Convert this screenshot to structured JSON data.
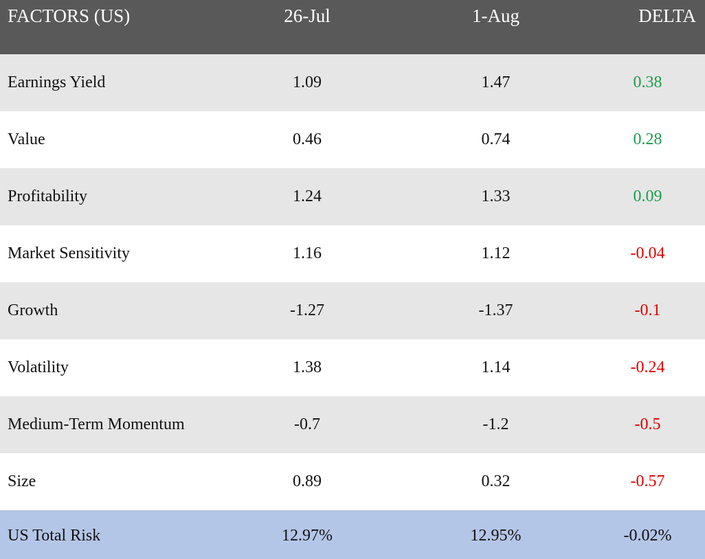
{
  "colors": {
    "header_bg": "#595959",
    "header_text": "#ffffff",
    "row_alt_bg": "#e6e6e6",
    "row_bg": "#ffffff",
    "total_bg": "#b4c6e7",
    "positive": "#1b9e4b",
    "negative": "#e00000"
  },
  "chart_data": {
    "type": "table",
    "columns": [
      "FACTORS (US)",
      "26-Jul",
      "1-Aug",
      "DELTA"
    ],
    "rows": [
      {
        "factor": "Earnings Yield",
        "jul": "1.09",
        "aug": "1.47",
        "delta": "0.38",
        "sign": "pos"
      },
      {
        "factor": "Value",
        "jul": "0.46",
        "aug": "0.74",
        "delta": "0.28",
        "sign": "pos"
      },
      {
        "factor": "Profitability",
        "jul": "1.24",
        "aug": "1.33",
        "delta": "0.09",
        "sign": "pos"
      },
      {
        "factor": "Market Sensitivity",
        "jul": "1.16",
        "aug": "1.12",
        "delta": "-0.04",
        "sign": "neg"
      },
      {
        "factor": "Growth",
        "jul": "-1.27",
        "aug": "-1.37",
        "delta": "-0.1",
        "sign": "neg"
      },
      {
        "factor": "Volatility",
        "jul": "1.38",
        "aug": "1.14",
        "delta": "-0.24",
        "sign": "neg"
      },
      {
        "factor": "Medium-Term Momentum",
        "jul": "-0.7",
        "aug": "-1.2",
        "delta": "-0.5",
        "sign": "neg"
      },
      {
        "factor": "Size",
        "jul": "0.89",
        "aug": "0.32",
        "delta": "-0.57",
        "sign": "neg"
      }
    ],
    "total": {
      "factor": "US Total Risk",
      "jul": "12.97%",
      "aug": "12.95%",
      "delta": "-0.02%"
    }
  }
}
